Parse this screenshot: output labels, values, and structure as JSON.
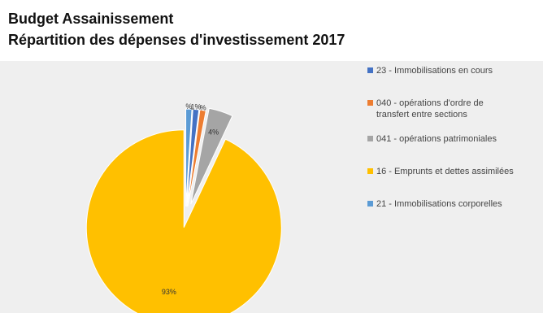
{
  "chart_data": {
    "type": "pie",
    "title": "Budget Assainissement",
    "subtitle": "Répartition des dépenses d'investissement 2017",
    "categories": [
      "23 - Immobilisations en cours",
      "040 - opérations d'ordre de transfert entre sections",
      "041 - opérations patrimoniales",
      "16 - Emprunts et dettes assimilées",
      "21 - Immobilisations corporelles"
    ],
    "values": [
      1,
      1,
      4,
      93,
      1
    ],
    "data_labels": [
      "1%",
      "%",
      "4%",
      "93%",
      "%"
    ],
    "colors": [
      "#4472C4",
      "#ED7D31",
      "#A5A5A5",
      "#FFC000",
      "#5B9BD5"
    ],
    "legend_position": "right",
    "exploded": true
  }
}
